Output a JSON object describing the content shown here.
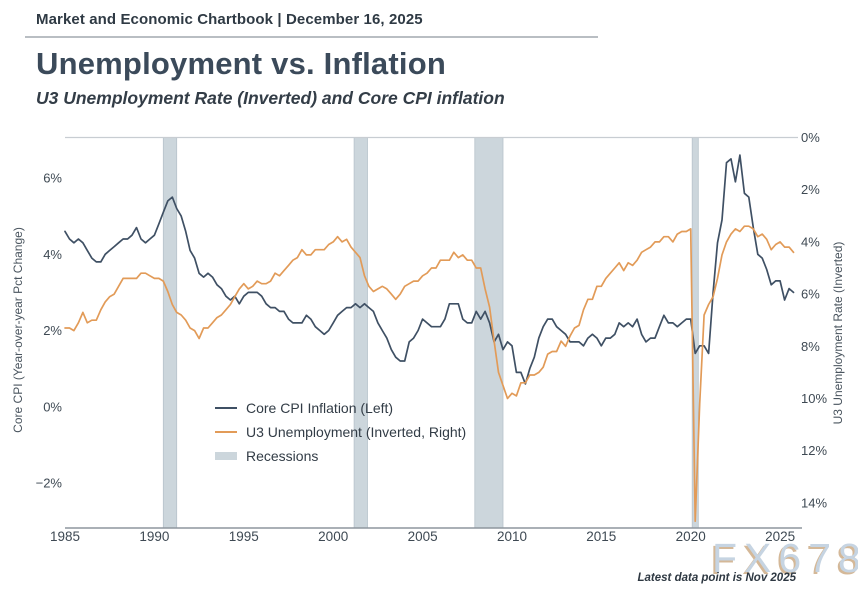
{
  "header": {
    "text": "Market and Economic Chartbook | December 16, 2025"
  },
  "title": "Unemployment vs. Inflation",
  "subtitle": "U3 Unemployment Rate (Inverted) and Core CPI inflation",
  "watermark": "FX678",
  "footnote": "Latest data point is Nov 2025",
  "colors": {
    "cpi_line": "#3f5064",
    "unemployment_line": "#e29b58",
    "recession": "#ccd6dc",
    "recession_edge": "#b7c3cb",
    "gridline": "#c8cdd2",
    "axis_line": "#8d959d",
    "text_dark": "#2f3a44"
  },
  "chart_data": {
    "type": "line",
    "title": "Unemployment vs. Inflation",
    "subtitle": "U3 Unemployment Rate (Inverted) and Core CPI inflation",
    "x_start": 1985,
    "x_step": 0.25,
    "x_range": [
      1985,
      2026
    ],
    "grid": "top-zero-line-only",
    "legend_position": "inside-lower-left",
    "x_ticks": [
      {
        "label": "1985",
        "value": 1985
      },
      {
        "label": "1990",
        "value": 1990
      },
      {
        "label": "1995",
        "value": 1995
      },
      {
        "label": "2000",
        "value": 2000
      },
      {
        "label": "2005",
        "value": 2005
      },
      {
        "label": "2010",
        "value": 2010
      },
      {
        "label": "2015",
        "value": 2015
      },
      {
        "label": "2020",
        "value": 2020
      },
      {
        "label": "2025",
        "value": 2025
      }
    ],
    "left_axis": {
      "label": "Core CPI (Year-over-year Pct Change)",
      "range_shown": [
        -3.2,
        7.1
      ],
      "ticks": [
        {
          "label": "6%",
          "value": 6
        },
        {
          "label": "4%",
          "value": 4
        },
        {
          "label": "2%",
          "value": 2
        },
        {
          "label": "0%",
          "value": 0
        },
        {
          "label": "−2%",
          "value": -2
        }
      ]
    },
    "right_axis": {
      "label": "U3 Unemployment Rate (Inverted)",
      "inverted": true,
      "range_shown": [
        0,
        15
      ],
      "ticks": [
        {
          "label": "0%",
          "value": 0
        },
        {
          "label": "2%",
          "value": 2
        },
        {
          "label": "4%",
          "value": 4
        },
        {
          "label": "6%",
          "value": 6
        },
        {
          "label": "8%",
          "value": 8
        },
        {
          "label": "10%",
          "value": 10
        },
        {
          "label": "12%",
          "value": 12
        },
        {
          "label": "14%",
          "value": 14
        }
      ]
    },
    "recessions": [
      [
        1990.5,
        1991.25
      ],
      [
        2001.17,
        2001.92
      ],
      [
        2007.92,
        2009.5
      ],
      [
        2020.08,
        2020.42
      ]
    ],
    "series": [
      {
        "name": "Core CPI Inflation (Left)",
        "axis": "left",
        "color": "#3f5064",
        "values": [
          4.6,
          4.4,
          4.3,
          4.4,
          4.3,
          4.1,
          3.9,
          3.8,
          3.8,
          4.0,
          4.1,
          4.2,
          4.3,
          4.4,
          4.4,
          4.5,
          4.7,
          4.4,
          4.3,
          4.4,
          4.5,
          4.8,
          5.1,
          5.4,
          5.5,
          5.2,
          5.0,
          4.6,
          4.1,
          3.9,
          3.5,
          3.4,
          3.5,
          3.4,
          3.2,
          3.1,
          2.9,
          2.8,
          2.9,
          2.7,
          2.9,
          3.0,
          3.0,
          3.0,
          2.9,
          2.7,
          2.6,
          2.6,
          2.5,
          2.5,
          2.3,
          2.2,
          2.2,
          2.2,
          2.4,
          2.3,
          2.1,
          2.0,
          1.9,
          2.0,
          2.2,
          2.4,
          2.5,
          2.6,
          2.6,
          2.7,
          2.6,
          2.7,
          2.6,
          2.5,
          2.2,
          2.0,
          1.8,
          1.5,
          1.3,
          1.2,
          1.2,
          1.7,
          1.8,
          2.0,
          2.3,
          2.2,
          2.1,
          2.1,
          2.1,
          2.3,
          2.7,
          2.7,
          2.7,
          2.3,
          2.2,
          2.2,
          2.5,
          2.3,
          2.5,
          2.2,
          1.7,
          1.9,
          1.5,
          1.7,
          1.6,
          0.9,
          0.9,
          0.6,
          1.0,
          1.3,
          1.8,
          2.1,
          2.3,
          2.3,
          2.1,
          2.0,
          1.9,
          1.7,
          1.7,
          1.7,
          1.6,
          1.8,
          1.9,
          1.8,
          1.6,
          1.8,
          1.8,
          1.9,
          2.2,
          2.1,
          2.2,
          2.1,
          2.3,
          1.9,
          1.7,
          1.8,
          1.8,
          2.1,
          2.4,
          2.2,
          2.2,
          2.1,
          2.2,
          2.3,
          2.3,
          1.4,
          1.6,
          1.6,
          1.4,
          3.0,
          4.3,
          4.9,
          6.4,
          6.5,
          5.9,
          6.6,
          5.6,
          5.5,
          4.7,
          4.0,
          3.9,
          3.6,
          3.2,
          3.3,
          3.3,
          2.8,
          3.1,
          3.0
        ]
      },
      {
        "name": "U3 Unemployment (Inverted, Right)",
        "axis": "right",
        "color": "#e29b58",
        "values": [
          7.3,
          7.3,
          7.4,
          7.1,
          6.7,
          7.1,
          7.0,
          7.0,
          6.6,
          6.3,
          6.1,
          6.0,
          5.7,
          5.4,
          5.4,
          5.4,
          5.4,
          5.2,
          5.2,
          5.3,
          5.4,
          5.4,
          5.5,
          5.9,
          6.4,
          6.7,
          6.8,
          7.0,
          7.3,
          7.4,
          7.7,
          7.3,
          7.3,
          7.1,
          6.9,
          6.8,
          6.6,
          6.4,
          6.1,
          5.8,
          5.6,
          5.8,
          5.7,
          5.5,
          5.6,
          5.6,
          5.5,
          5.2,
          5.3,
          5.1,
          4.9,
          4.7,
          4.6,
          4.3,
          4.5,
          4.5,
          4.3,
          4.3,
          4.3,
          4.1,
          4.0,
          3.8,
          4.0,
          3.9,
          4.2,
          4.4,
          4.6,
          5.3,
          5.7,
          5.9,
          5.8,
          5.7,
          5.8,
          6.0,
          6.2,
          6.0,
          5.7,
          5.6,
          5.5,
          5.5,
          5.3,
          5.2,
          5.0,
          5.0,
          4.7,
          4.7,
          4.7,
          4.4,
          4.6,
          4.5,
          4.7,
          4.7,
          5.0,
          5.0,
          5.8,
          6.5,
          7.8,
          9.0,
          9.5,
          10.0,
          9.8,
          9.9,
          9.4,
          9.4,
          9.1,
          9.1,
          9.0,
          8.8,
          8.3,
          8.2,
          8.2,
          7.8,
          8.0,
          7.6,
          7.3,
          7.2,
          6.6,
          6.2,
          6.2,
          5.7,
          5.7,
          5.4,
          5.2,
          5.0,
          4.8,
          5.1,
          4.8,
          4.9,
          4.7,
          4.4,
          4.3,
          4.2,
          4.0,
          4.0,
          3.8,
          3.8,
          4.0,
          3.7,
          3.6,
          3.6,
          3.5,
          14.7,
          10.2,
          6.8,
          6.4,
          6.1,
          5.4,
          4.5,
          4.0,
          3.7,
          3.5,
          3.6,
          3.4,
          3.4,
          3.5,
          3.8,
          3.7,
          3.9,
          4.3,
          4.1,
          4.0,
          4.2,
          4.2,
          4.4
        ]
      }
    ],
    "legend": [
      {
        "label": "Core CPI Inflation (Left)",
        "kind": "line",
        "color": "#3f5064"
      },
      {
        "label": "U3 Unemployment (Inverted, Right)",
        "kind": "line",
        "color": "#e29b58"
      },
      {
        "label": "Recessions",
        "kind": "band",
        "color": "#ccd6dc"
      }
    ]
  }
}
